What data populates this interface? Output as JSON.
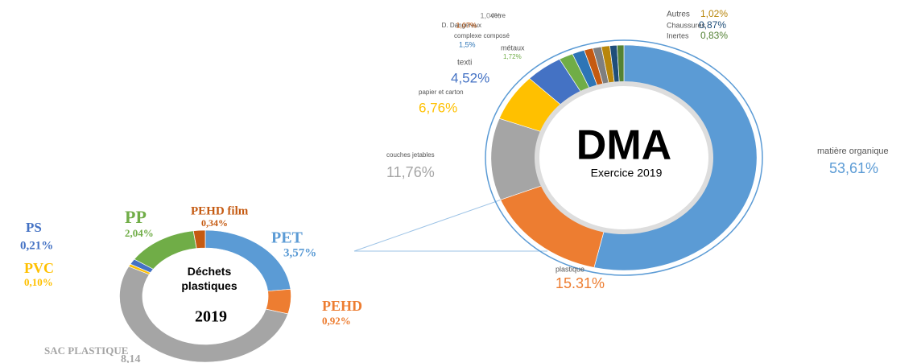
{
  "chart_data": [
    {
      "type": "pie",
      "title": "DMA",
      "subtitle": "Exercice 2019",
      "categories": [
        "matière organique",
        "plastique",
        "couches jetables",
        "papier et carton",
        "texti",
        "métaux",
        "complexe composé",
        "D. Dangereux",
        "verre",
        "Autres",
        "Chaussures",
        "Inertes"
      ],
      "values": [
        53.61,
        15.31,
        11.76,
        6.76,
        4.52,
        1.72,
        1.5,
        1.07,
        1.04,
        1.02,
        0.87,
        0.83
      ],
      "value_labels": [
        "53,61%",
        "15.31%",
        "11,76%",
        "6,76%",
        "4,52%",
        "1,72%",
        "1,5%",
        "1,07%",
        "1,04%",
        "1,02%",
        "0,87%",
        "0,83%"
      ],
      "colors": [
        "#5b9bd5",
        "#ed7d31",
        "#a5a5a5",
        "#ffc000",
        "#4472c4",
        "#70ad47",
        "#2e75b6",
        "#c55a11",
        "#7f7f7f",
        "#b8860b",
        "#1f4e79",
        "#548235"
      ]
    },
    {
      "type": "pie",
      "title": "Déchets plastiques",
      "subtitle": "2019",
      "categories": [
        "PET",
        "PEHD",
        "SAC PLASTIQUE",
        "PVC",
        "PS",
        "PP",
        "PEHD film"
      ],
      "values": [
        3.57,
        0.92,
        8.14,
        0.1,
        0.21,
        2.04,
        0.34
      ],
      "value_labels": [
        "3,57%",
        "0,92%",
        "8,14",
        "0,10%",
        "0,21%",
        "2,04%",
        "0,34%"
      ],
      "colors": [
        "#5b9bd5",
        "#ed7d31",
        "#a5a5a5",
        "#ffc000",
        "#4472c4",
        "#70ad47",
        "#c55a11"
      ]
    }
  ]
}
